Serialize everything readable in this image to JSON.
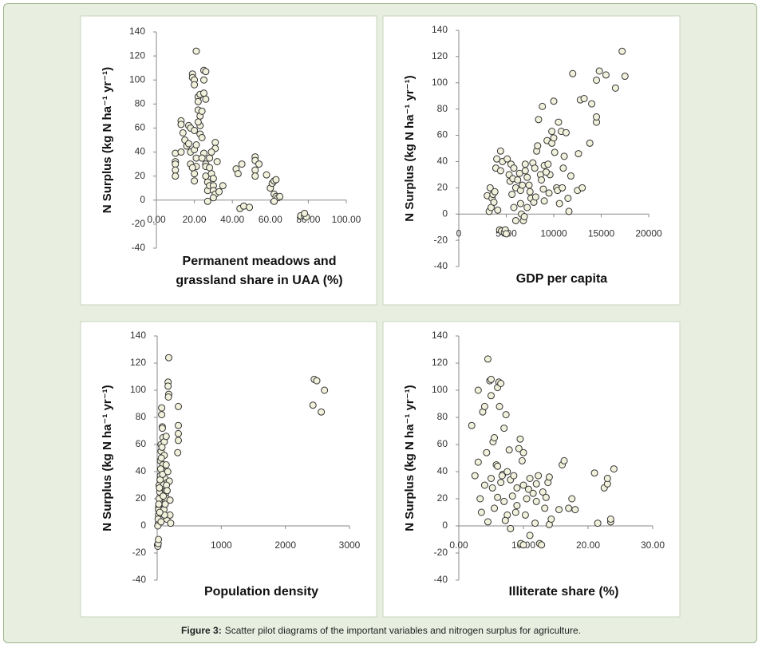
{
  "chart_data": [
    {
      "type": "scatter",
      "xlabel": [
        "Permanent meadows and",
        "grassland share in UAA (%)"
      ],
      "ylabel": "N Surplus (kg N ha⁻¹ yr⁻¹)",
      "color": "#f1f1dc",
      "xlim": [
        0,
        100
      ],
      "ylim": [
        -40,
        140
      ],
      "xticks": [
        {
          "value": 0,
          "label": "0.00"
        },
        {
          "value": 20,
          "label": "20.00"
        },
        {
          "value": 40,
          "label": "40.00"
        },
        {
          "value": 60,
          "label": "60.00"
        },
        {
          "value": 80,
          "label": "80.00"
        },
        {
          "value": 100,
          "label": "100.00"
        }
      ],
      "yticks": [
        -40,
        -20,
        0,
        20,
        40,
        60,
        80,
        100,
        120,
        140
      ],
      "x": [
        10,
        10,
        10,
        10,
        10,
        13,
        13,
        14,
        13,
        15,
        16,
        17,
        17,
        18,
        18,
        18,
        19,
        19,
        20,
        20,
        21,
        20,
        20,
        20,
        21,
        21,
        22,
        22,
        22,
        23,
        23,
        23,
        23,
        24,
        25,
        25,
        26,
        25,
        26,
        25,
        26,
        26,
        27,
        27,
        27,
        28,
        28,
        29,
        30,
        30,
        30,
        31,
        31,
        31,
        30,
        32,
        33,
        35,
        42,
        43,
        44,
        45,
        46,
        49,
        52,
        52,
        52,
        52,
        54,
        58,
        60,
        61,
        62,
        62,
        63,
        63,
        64,
        65,
        62,
        76,
        78,
        79,
        78,
        26,
        28,
        24,
        29,
        20,
        22,
        24,
        21,
        19
      ],
      "y": [
        39,
        32,
        30,
        25,
        20,
        66,
        63,
        56,
        40,
        50,
        45,
        62,
        47,
        60,
        30,
        40,
        105,
        102,
        100,
        96,
        124,
        42,
        22,
        16,
        35,
        28,
        86,
        82,
        75,
        88,
        70,
        62,
        55,
        74,
        108,
        100,
        107,
        89,
        84,
        39,
        30,
        20,
        15,
        8,
        -1,
        12,
        35,
        22,
        18,
        12,
        8,
        48,
        43,
        5,
        2,
        32,
        7,
        12,
        26,
        22,
        -7,
        30,
        -5,
        -6,
        36,
        33,
        25,
        20,
        30,
        21,
        10,
        14,
        16,
        5,
        17,
        3,
        2,
        3,
        -1,
        -13,
        -13,
        -14,
        -11,
        28,
        27,
        35,
        40,
        58,
        65,
        52,
        46,
        27
      ]
    },
    {
      "type": "scatter",
      "xlabel": [
        "GDP per capita"
      ],
      "ylabel": "N Surplus (kg N ha⁻¹ yr⁻¹)",
      "color": "#f1f1dc",
      "xlim": [
        0,
        20000
      ],
      "ylim": [
        -40,
        140
      ],
      "xticks": [
        0,
        5000,
        10000,
        15000,
        20000
      ],
      "yticks": [
        -40,
        -20,
        0,
        20,
        40,
        60,
        80,
        100,
        120,
        140
      ],
      "x": [
        3000,
        3200,
        3300,
        3400,
        3500,
        3600,
        3700,
        3800,
        3900,
        4000,
        4100,
        4300,
        4400,
        4400,
        4500,
        4600,
        4800,
        4900,
        5000,
        5100,
        5300,
        5400,
        5500,
        5700,
        5800,
        5800,
        6000,
        6000,
        6200,
        6400,
        6500,
        6500,
        6600,
        6800,
        6900,
        7000,
        7000,
        7200,
        7200,
        7400,
        7500,
        7600,
        7800,
        7900,
        8000,
        8200,
        8300,
        8400,
        8600,
        8700,
        8800,
        8900,
        9000,
        9000,
        9300,
        9400,
        9500,
        9600,
        9800,
        9800,
        10000,
        10000,
        10100,
        10300,
        10400,
        10500,
        10600,
        10800,
        10900,
        11000,
        11100,
        11300,
        11500,
        11600,
        11800,
        12000,
        12500,
        12600,
        12800,
        13000,
        13200,
        13800,
        14000,
        14500,
        14500,
        14500,
        14800,
        15500,
        16500,
        17200,
        17500,
        6700,
        8100,
        9200,
        5600
      ],
      "y": [
        14,
        2,
        20,
        5,
        12,
        15,
        9,
        17,
        35,
        42,
        3,
        -12,
        48,
        33,
        -13,
        40,
        -14,
        -12,
        -15,
        42,
        30,
        25,
        38,
        27,
        5,
        35,
        -5,
        20,
        26,
        31,
        18,
        8,
        0,
        -5,
        -2,
        33,
        38,
        28,
        5,
        22,
        17,
        12,
        39,
        9,
        35,
        48,
        52,
        72,
        30,
        26,
        82,
        19,
        37,
        10,
        56,
        38,
        16,
        30,
        54,
        63,
        86,
        58,
        47,
        20,
        18,
        70,
        8,
        63,
        20,
        35,
        44,
        62,
        12,
        2,
        29,
        107,
        18,
        46,
        87,
        20,
        88,
        54,
        84,
        70,
        74,
        102,
        109,
        106,
        96,
        124,
        105,
        22,
        13,
        32,
        15
      ]
    },
    {
      "type": "scatter",
      "xlabel": [
        "Population density"
      ],
      "ylabel": "N Surplus (kg N ha⁻¹ yr⁻¹)",
      "color": "#f1f1dc",
      "xlim": [
        0,
        3000
      ],
      "ylim": [
        -40,
        140
      ],
      "xticks": [
        1000,
        2000,
        3000
      ],
      "yticks": [
        -40,
        -20,
        0,
        20,
        40,
        60,
        80,
        100,
        120,
        140
      ],
      "x": [
        5,
        10,
        15,
        20,
        20,
        25,
        30,
        30,
        40,
        50,
        50,
        60,
        60,
        70,
        70,
        80,
        80,
        90,
        90,
        100,
        100,
        110,
        110,
        120,
        120,
        130,
        130,
        140,
        140,
        150,
        150,
        160,
        170,
        170,
        180,
        180,
        190,
        200,
        200,
        210,
        330,
        330,
        330,
        330,
        320,
        2430,
        2450,
        2490,
        2560,
        2610,
        10,
        15,
        20,
        25,
        35,
        45,
        55,
        65,
        75,
        85,
        95,
        105,
        115,
        125,
        135,
        145,
        155,
        165,
        175,
        20,
        40,
        60
      ],
      "y": [
        -14,
        -15,
        -13,
        2,
        8,
        14,
        20,
        30,
        25,
        37,
        48,
        55,
        60,
        82,
        87,
        73,
        72,
        65,
        45,
        40,
        31,
        62,
        52,
        35,
        27,
        18,
        24,
        66,
        45,
        20,
        5,
        32,
        106,
        103,
        124,
        97,
        33,
        19,
        8,
        2,
        88,
        74,
        68,
        63,
        54,
        89,
        108,
        107,
        84,
        100,
        0,
        5,
        12,
        16,
        28,
        34,
        42,
        50,
        58,
        38,
        22,
        12,
        8,
        16,
        26,
        30,
        26,
        40,
        95,
        -10,
        10,
        3
      ]
    },
    {
      "type": "scatter",
      "xlabel": [
        "Illiterate share (%)"
      ],
      "ylabel": "N Surplus (kg N ha⁻¹ yr⁻¹)",
      "color": "#f1f1dc",
      "xlim": [
        0,
        30
      ],
      "ylim": [
        -40,
        140
      ],
      "xticks": [
        {
          "value": 0,
          "label": "0.00"
        },
        {
          "value": 10,
          "label": "10.00"
        },
        {
          "value": 20,
          "label": "20.00"
        },
        {
          "value": 30,
          "label": "30.00"
        }
      ],
      "yticks": [
        -40,
        -20,
        0,
        20,
        40,
        60,
        80,
        100,
        120,
        140
      ],
      "x": [
        2,
        2.5,
        3,
        3,
        3.3,
        3.5,
        3.7,
        4,
        4,
        4.3,
        4.5,
        4.5,
        4.8,
        5,
        5,
        5,
        5.2,
        5.3,
        5.5,
        5.5,
        5.8,
        6,
        6,
        6,
        6.2,
        6.3,
        6.5,
        6.5,
        6.8,
        7,
        7,
        7.3,
        7.5,
        7.5,
        7.8,
        8,
        8,
        8.3,
        8.5,
        9,
        9,
        9.3,
        9.5,
        9.6,
        9.8,
        10,
        10,
        10,
        10.3,
        10.5,
        10.8,
        11,
        11,
        11.5,
        12,
        12,
        12.3,
        12.5,
        12.8,
        13,
        13.3,
        13.5,
        13.8,
        14,
        14,
        14.3,
        15.5,
        16,
        16.3,
        17,
        17.5,
        18,
        21,
        21.5,
        22.5,
        23,
        23,
        23.5,
        23.5,
        24,
        6.7,
        8.8,
        7.2,
        11.8
      ],
      "y": [
        74,
        37,
        100,
        47,
        20,
        10,
        84,
        88,
        30,
        54,
        123,
        3,
        107,
        108,
        96,
        35,
        28,
        62,
        65,
        13,
        45,
        102,
        44,
        21,
        106,
        88,
        105,
        32,
        38,
        72,
        18,
        82,
        40,
        8,
        56,
        34,
        -2,
        22,
        37,
        28,
        15,
        57,
        64,
        -13,
        48,
        54,
        30,
        -14,
        8,
        20,
        27,
        35,
        -7,
        24,
        31,
        18,
        37,
        -13,
        -14,
        25,
        13,
        21,
        32,
        36,
        1,
        5,
        12,
        45,
        48,
        13,
        20,
        12,
        39,
        2,
        28,
        31,
        35,
        3,
        5,
        42,
        37,
        10,
        4,
        2
      ]
    }
  ],
  "caption": {
    "label": "Figure 3:",
    "text": "Scatter pilot diagrams of the important variables and nitrogen surplus for agriculture."
  }
}
